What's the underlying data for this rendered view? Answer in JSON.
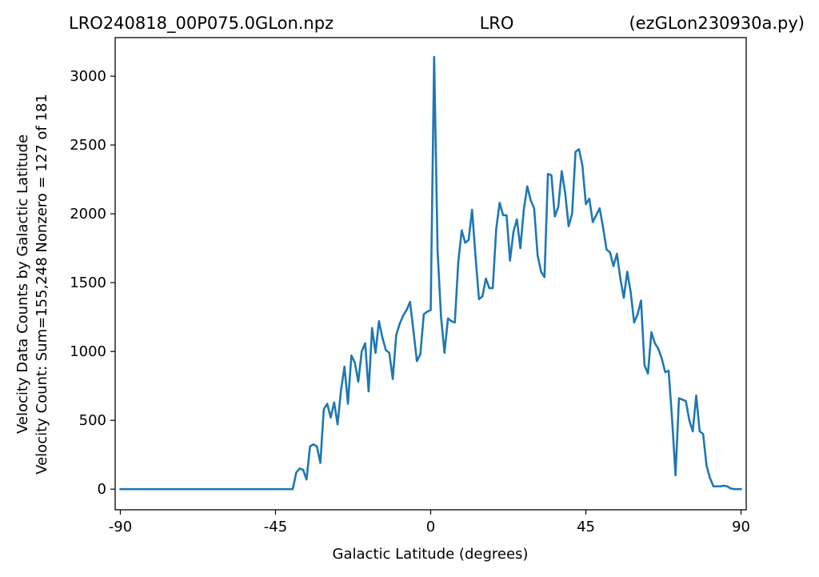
{
  "header": {
    "left": "LRO240818_00P075.0GLon.npz",
    "center": "LRO",
    "right": "(ezGLon230930a.py)"
  },
  "chart_data": {
    "type": "line",
    "title": "",
    "xlabel": "Galactic Latitude (degrees)",
    "ylabel_lines": [
      "Velocity Data Counts by Galactic Latitude",
      "Velocity Count: Sum=155,248 Nonzero = 127 of 181"
    ],
    "xlim": [
      -91.5,
      91.5
    ],
    "ylim": [
      -150,
      3280
    ],
    "xticks": [
      -90,
      -45,
      0,
      45,
      90
    ],
    "xtick_labels": [
      "-90",
      "-45",
      "0",
      "45",
      "90"
    ],
    "yticks": [
      0,
      500,
      1000,
      1500,
      2000,
      2500,
      3000
    ],
    "ytick_labels": [
      "0",
      "500",
      "1000",
      "1500",
      "2000",
      "2500",
      "3000"
    ],
    "grid": false,
    "series": [
      {
        "color": "#1f77b4",
        "x": [
          -90,
          -89,
          -88,
          -87,
          -86,
          -85,
          -84,
          -83,
          -82,
          -81,
          -80,
          -79,
          -78,
          -77,
          -76,
          -75,
          -74,
          -73,
          -72,
          -71,
          -70,
          -69,
          -68,
          -67,
          -66,
          -65,
          -64,
          -63,
          -62,
          -61,
          -60,
          -59,
          -58,
          -57,
          -56,
          -55,
          -54,
          -53,
          -52,
          -51,
          -50,
          -49,
          -48,
          -47,
          -46,
          -45,
          -44,
          -43,
          -42,
          -41,
          -40,
          -39,
          -38,
          -37,
          -36,
          -35,
          -34,
          -33,
          -32,
          -31,
          -30,
          -29,
          -28,
          -27,
          -26,
          -25,
          -24,
          -23,
          -22,
          -21,
          -20,
          -19,
          -18,
          -17,
          -16,
          -15,
          -14,
          -13,
          -12,
          -11,
          -10,
          -9,
          -8,
          -7,
          -6,
          -5,
          -4,
          -3,
          -2,
          -1,
          0,
          1,
          2,
          3,
          4,
          5,
          6,
          7,
          8,
          9,
          10,
          11,
          12,
          13,
          14,
          15,
          16,
          17,
          18,
          19,
          20,
          21,
          22,
          23,
          24,
          25,
          26,
          27,
          28,
          29,
          30,
          31,
          32,
          33,
          34,
          35,
          36,
          37,
          38,
          39,
          40,
          41,
          42,
          43,
          44,
          45,
          46,
          47,
          48,
          49,
          50,
          51,
          52,
          53,
          54,
          55,
          56,
          57,
          58,
          59,
          60,
          61,
          62,
          63,
          64,
          65,
          66,
          67,
          68,
          69,
          70,
          71,
          72,
          73,
          74,
          75,
          76,
          77,
          78,
          79,
          80,
          81,
          82,
          83,
          84,
          85,
          86,
          87,
          88,
          89,
          90
        ],
        "y": [
          0,
          0,
          0,
          0,
          0,
          0,
          0,
          0,
          0,
          0,
          0,
          0,
          0,
          0,
          0,
          0,
          0,
          0,
          0,
          0,
          0,
          0,
          0,
          0,
          0,
          0,
          0,
          0,
          0,
          0,
          0,
          0,
          0,
          0,
          0,
          0,
          0,
          0,
          0,
          0,
          0,
          0,
          0,
          0,
          0,
          0,
          0,
          0,
          0,
          0,
          0,
          120,
          150,
          140,
          70,
          310,
          325,
          310,
          190,
          580,
          620,
          520,
          630,
          470,
          720,
          890,
          620,
          970,
          920,
          780,
          1000,
          1060,
          710,
          1170,
          990,
          1220,
          1100,
          1010,
          990,
          800,
          1120,
          1200,
          1260,
          1300,
          1360,
          1150,
          930,
          980,
          1270,
          1290,
          1300,
          3140,
          1730,
          1250,
          990,
          1240,
          1220,
          1210,
          1650,
          1880,
          1790,
          1810,
          2030,
          1690,
          1380,
          1400,
          1530,
          1460,
          1460,
          1890,
          2080,
          1990,
          1990,
          1660,
          1870,
          1960,
          1750,
          2030,
          2200,
          2100,
          2040,
          1700,
          1580,
          1540,
          2290,
          2280,
          1980,
          2050,
          2310,
          2150,
          1910,
          2000,
          2450,
          2470,
          2350,
          2070,
          2110,
          1940,
          1990,
          2040,
          1900,
          1740,
          1720,
          1620,
          1710,
          1530,
          1390,
          1580,
          1430,
          1210,
          1270,
          1370,
          900,
          840,
          1140,
          1060,
          1020,
          950,
          850,
          860,
          510,
          100,
          660,
          650,
          640,
          500,
          420,
          680,
          420,
          400,
          170,
          80,
          20,
          20,
          20,
          25,
          20,
          5,
          0,
          0,
          0
        ]
      }
    ]
  }
}
